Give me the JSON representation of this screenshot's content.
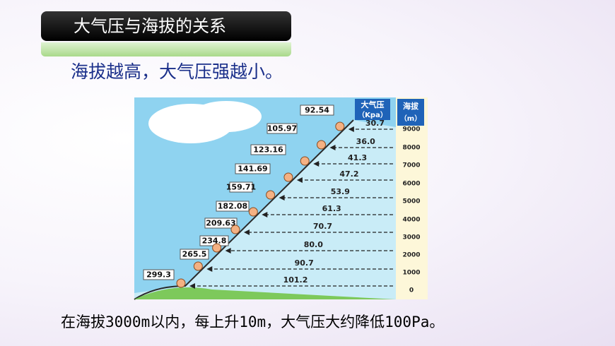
{
  "title": "大气压与海拔的关系",
  "subtitle": "海拔越高，大气压强越小。",
  "figure": {
    "pressure_header": "大气压",
    "pressure_unit": "（Kpa）",
    "altitude_header": "海拔",
    "altitude_unit": "（m）",
    "rows": [
      {
        "left": "92.54",
        "pressure": "30.7",
        "altitude": "9000"
      },
      {
        "left": "105.97",
        "pressure": "36.0",
        "altitude": "8000"
      },
      {
        "left": "123.16",
        "pressure": "41.3",
        "altitude": "7000"
      },
      {
        "left": "141.69",
        "pressure": "47.2",
        "altitude": "6000"
      },
      {
        "left": "159.71",
        "pressure": "53.9",
        "altitude": "5000"
      },
      {
        "left": "182.08",
        "pressure": "61.3",
        "altitude": "4000"
      },
      {
        "left": "209.63",
        "pressure": "70.7",
        "altitude": "3000"
      },
      {
        "left": "234.8",
        "pressure": "80.0",
        "altitude": "2000"
      },
      {
        "left": "265.5",
        "pressure": "90.7",
        "altitude": "1000"
      },
      {
        "left": "299.3",
        "pressure": "101.2",
        "altitude": "0"
      }
    ]
  },
  "footer": "在海拔3000m以内，每上升10m，大气压大约降低100Pa。"
}
